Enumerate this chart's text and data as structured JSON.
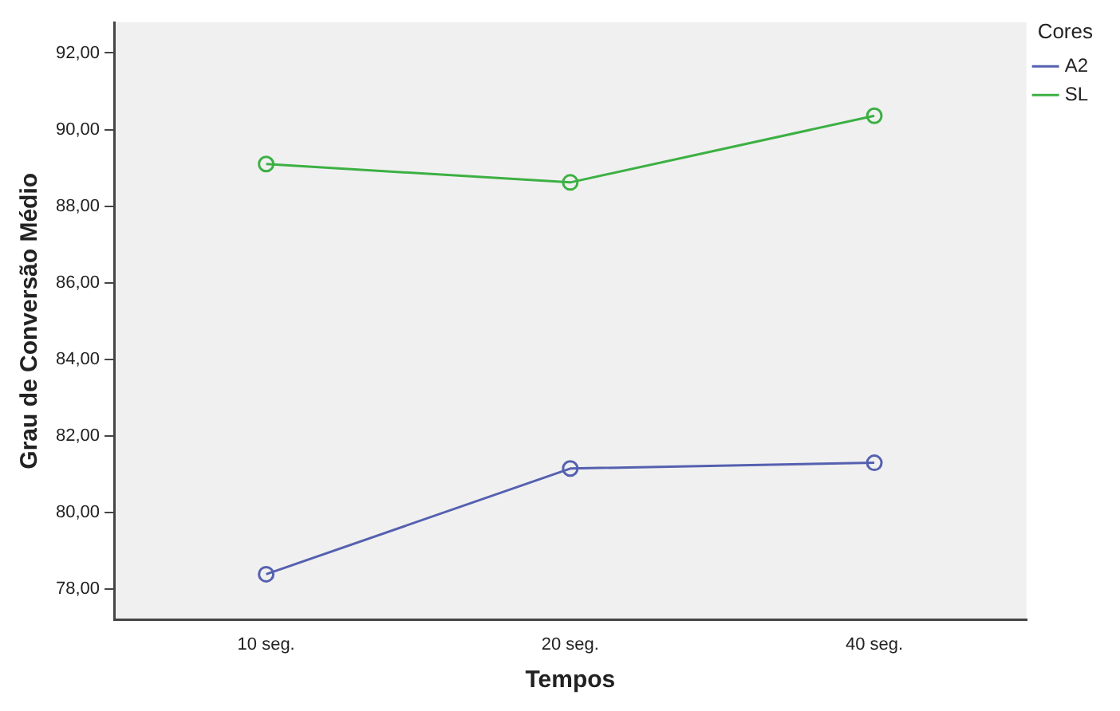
{
  "chart_data": {
    "type": "line",
    "xlabel": "Tempos",
    "ylabel": "Grau de Conversão Médio",
    "legend_title": "Cores",
    "legend": "top right",
    "marker": "circle",
    "grid": false,
    "categories": [
      "10 seg.",
      "20 seg.",
      "40 seg."
    ],
    "series": [
      {
        "name": "A2",
        "color": "#5560b0",
        "values": [
          78.39,
          81.15,
          81.3
        ]
      },
      {
        "name": "SL",
        "color": "#3cb043",
        "values": [
          89.1,
          88.62,
          90.36
        ]
      }
    ],
    "ylim": [
      77.2,
      92.8
    ],
    "yticks": [
      {
        "value": 78,
        "label": "78,00"
      },
      {
        "value": 80,
        "label": "80,00"
      },
      {
        "value": 82,
        "label": "82,00"
      },
      {
        "value": 84,
        "label": "84,00"
      },
      {
        "value": 86,
        "label": "86,00"
      },
      {
        "value": 88,
        "label": "88,00"
      },
      {
        "value": 90,
        "label": "90,00"
      },
      {
        "value": 92,
        "label": "92,00"
      }
    ]
  }
}
